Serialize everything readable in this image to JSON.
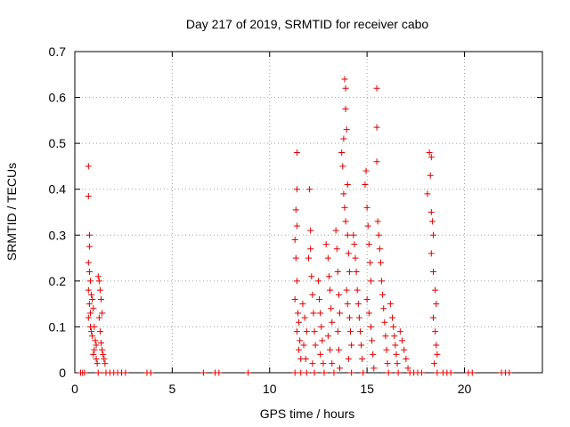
{
  "chart_data": {
    "type": "scatter",
    "title": "Day 217 of 2019, SRMTID for receiver cabo",
    "xlabel": "GPS time / hours",
    "ylabel": "SRMTID / TECUs",
    "xlim": [
      0,
      24
    ],
    "ylim": [
      0,
      0.7
    ],
    "xticks": [
      "0",
      "5",
      "10",
      "15",
      "20"
    ],
    "yticks": [
      "0",
      "0.1",
      "0.2",
      "0.3",
      "0.4",
      "0.5",
      "0.6",
      "0.7"
    ],
    "grid": true,
    "marker": "+",
    "color": "#e00000",
    "points": [
      [
        0.3,
        0.0
      ],
      [
        0.4,
        0.0
      ],
      [
        0.5,
        0.0
      ],
      [
        0.7,
        0.45
      ],
      [
        0.7,
        0.385
      ],
      [
        0.75,
        0.3
      ],
      [
        0.75,
        0.275
      ],
      [
        0.7,
        0.24
      ],
      [
        0.75,
        0.22
      ],
      [
        0.8,
        0.2
      ],
      [
        0.7,
        0.18
      ],
      [
        0.75,
        0.15
      ],
      [
        0.8,
        0.13
      ],
      [
        0.85,
        0.17
      ],
      [
        0.9,
        0.16
      ],
      [
        0.95,
        0.14
      ],
      [
        0.7,
        0.12
      ],
      [
        0.8,
        0.1
      ],
      [
        0.85,
        0.09
      ],
      [
        0.9,
        0.08
      ],
      [
        1.0,
        0.1
      ],
      [
        1.05,
        0.07
      ],
      [
        1.1,
        0.06
      ],
      [
        1.0,
        0.05
      ],
      [
        0.95,
        0.04
      ],
      [
        1.1,
        0.03
      ],
      [
        1.15,
        0.02
      ],
      [
        1.2,
        0.0
      ],
      [
        1.2,
        0.21
      ],
      [
        1.25,
        0.2
      ],
      [
        1.3,
        0.18
      ],
      [
        1.35,
        0.16
      ],
      [
        1.4,
        0.13
      ],
      [
        1.25,
        0.12
      ],
      [
        1.3,
        0.09
      ],
      [
        1.35,
        0.065
      ],
      [
        1.4,
        0.05
      ],
      [
        1.45,
        0.04
      ],
      [
        1.5,
        0.03
      ],
      [
        1.55,
        0.02
      ],
      [
        1.6,
        0.0
      ],
      [
        1.8,
        0.0
      ],
      [
        2.0,
        0.0
      ],
      [
        2.2,
        0.0
      ],
      [
        2.4,
        0.0
      ],
      [
        2.6,
        0.0
      ],
      [
        3.7,
        0.0
      ],
      [
        3.9,
        0.0
      ],
      [
        6.6,
        0.0
      ],
      [
        7.2,
        0.0
      ],
      [
        7.4,
        0.0
      ],
      [
        8.9,
        0.0
      ],
      [
        11.3,
        0.0
      ],
      [
        11.4,
        0.48
      ],
      [
        11.4,
        0.4
      ],
      [
        11.35,
        0.355
      ],
      [
        11.4,
        0.32
      ],
      [
        11.3,
        0.29
      ],
      [
        11.35,
        0.25
      ],
      [
        11.4,
        0.2
      ],
      [
        11.3,
        0.16
      ],
      [
        11.45,
        0.13
      ],
      [
        11.5,
        0.11
      ],
      [
        11.4,
        0.09
      ],
      [
        11.55,
        0.07
      ],
      [
        11.5,
        0.05
      ],
      [
        11.6,
        0.03
      ],
      [
        11.6,
        0.0
      ],
      [
        11.7,
        0.15
      ],
      [
        11.8,
        0.12
      ],
      [
        11.9,
        0.09
      ],
      [
        11.75,
        0.06
      ],
      [
        11.85,
        0.03
      ],
      [
        11.9,
        0.0
      ],
      [
        12.0,
        0.25
      ],
      [
        12.1,
        0.27
      ],
      [
        12.05,
        0.4
      ],
      [
        12.1,
        0.31
      ],
      [
        12.15,
        0.21
      ],
      [
        12.2,
        0.17
      ],
      [
        12.25,
        0.13
      ],
      [
        12.3,
        0.09
      ],
      [
        12.35,
        0.06
      ],
      [
        12.2,
        0.02
      ],
      [
        12.3,
        0.0
      ],
      [
        12.5,
        0.2
      ],
      [
        12.55,
        0.16
      ],
      [
        12.6,
        0.13
      ],
      [
        12.65,
        0.1
      ],
      [
        12.7,
        0.07
      ],
      [
        12.6,
        0.04
      ],
      [
        12.75,
        0.02
      ],
      [
        12.8,
        0.0
      ],
      [
        12.9,
        0.28
      ],
      [
        13.0,
        0.25
      ],
      [
        13.05,
        0.21
      ],
      [
        13.1,
        0.18
      ],
      [
        13.15,
        0.14
      ],
      [
        13.2,
        0.11
      ],
      [
        13.0,
        0.08
      ],
      [
        13.1,
        0.05
      ],
      [
        13.2,
        0.02
      ],
      [
        13.3,
        0.0
      ],
      [
        13.4,
        0.31
      ],
      [
        13.45,
        0.27
      ],
      [
        13.5,
        0.22
      ],
      [
        13.55,
        0.17
      ],
      [
        13.6,
        0.13
      ],
      [
        13.5,
        0.09
      ],
      [
        13.55,
        0.05
      ],
      [
        13.6,
        0.01
      ],
      [
        13.7,
        0.48
      ],
      [
        13.75,
        0.45
      ],
      [
        13.8,
        0.51
      ],
      [
        13.85,
        0.64
      ],
      [
        13.9,
        0.62
      ],
      [
        13.9,
        0.575
      ],
      [
        13.95,
        0.53
      ],
      [
        14.0,
        0.41
      ],
      [
        13.8,
        0.39
      ],
      [
        13.85,
        0.36
      ],
      [
        13.9,
        0.33
      ],
      [
        14.0,
        0.3
      ],
      [
        14.05,
        0.26
      ],
      [
        14.1,
        0.22
      ],
      [
        13.95,
        0.18
      ],
      [
        14.0,
        0.15
      ],
      [
        14.1,
        0.12
      ],
      [
        14.15,
        0.09
      ],
      [
        14.2,
        0.06
      ],
      [
        14.05,
        0.03
      ],
      [
        14.2,
        0.0
      ],
      [
        14.3,
        0.3
      ],
      [
        14.35,
        0.28
      ],
      [
        14.4,
        0.25
      ],
      [
        14.45,
        0.22
      ],
      [
        14.5,
        0.18
      ],
      [
        14.55,
        0.15
      ],
      [
        14.6,
        0.12
      ],
      [
        14.65,
        0.09
      ],
      [
        14.7,
        0.06
      ],
      [
        14.75,
        0.03
      ],
      [
        14.8,
        0.0
      ],
      [
        14.9,
        0.41
      ],
      [
        14.95,
        0.44
      ],
      [
        15.0,
        0.36
      ],
      [
        15.05,
        0.32
      ],
      [
        15.1,
        0.28
      ],
      [
        15.15,
        0.24
      ],
      [
        15.2,
        0.2
      ],
      [
        15.0,
        0.16
      ],
      [
        15.1,
        0.13
      ],
      [
        15.2,
        0.1
      ],
      [
        15.25,
        0.07
      ],
      [
        15.3,
        0.04
      ],
      [
        15.35,
        0.01
      ],
      [
        15.5,
        0.62
      ],
      [
        15.5,
        0.535
      ],
      [
        15.5,
        0.46
      ],
      [
        15.55,
        0.33
      ],
      [
        15.6,
        0.3
      ],
      [
        15.65,
        0.27
      ],
      [
        15.7,
        0.24
      ],
      [
        15.75,
        0.2
      ],
      [
        15.8,
        0.17
      ],
      [
        15.85,
        0.14
      ],
      [
        15.9,
        0.11
      ],
      [
        15.95,
        0.08
      ],
      [
        16.0,
        0.05
      ],
      [
        16.05,
        0.02
      ],
      [
        16.1,
        0.0
      ],
      [
        16.2,
        0.15
      ],
      [
        16.3,
        0.12
      ],
      [
        16.35,
        0.1
      ],
      [
        16.4,
        0.08
      ],
      [
        16.45,
        0.06
      ],
      [
        16.5,
        0.04
      ],
      [
        16.55,
        0.02
      ],
      [
        16.6,
        0.0
      ],
      [
        16.7,
        0.09
      ],
      [
        16.8,
        0.07
      ],
      [
        16.9,
        0.05
      ],
      [
        17.0,
        0.03
      ],
      [
        17.1,
        0.01
      ],
      [
        17.2,
        0.0
      ],
      [
        17.4,
        0.0
      ],
      [
        17.6,
        0.0
      ],
      [
        17.8,
        0.0
      ],
      [
        18.1,
        0.39
      ],
      [
        18.2,
        0.48
      ],
      [
        18.3,
        0.47
      ],
      [
        18.25,
        0.43
      ],
      [
        18.3,
        0.35
      ],
      [
        18.35,
        0.33
      ],
      [
        18.4,
        0.3
      ],
      [
        18.3,
        0.26
      ],
      [
        18.4,
        0.22
      ],
      [
        18.5,
        0.18
      ],
      [
        18.55,
        0.15
      ],
      [
        18.4,
        0.12
      ],
      [
        18.5,
        0.09
      ],
      [
        18.55,
        0.06
      ],
      [
        18.6,
        0.04
      ],
      [
        18.45,
        0.02
      ],
      [
        18.6,
        0.0
      ],
      [
        18.9,
        0.0
      ],
      [
        19.1,
        0.0
      ],
      [
        19.3,
        0.0
      ],
      [
        20.2,
        0.0
      ],
      [
        20.4,
        0.0
      ],
      [
        21.9,
        0.0
      ],
      [
        22.1,
        0.0
      ],
      [
        22.3,
        0.0
      ]
    ]
  }
}
